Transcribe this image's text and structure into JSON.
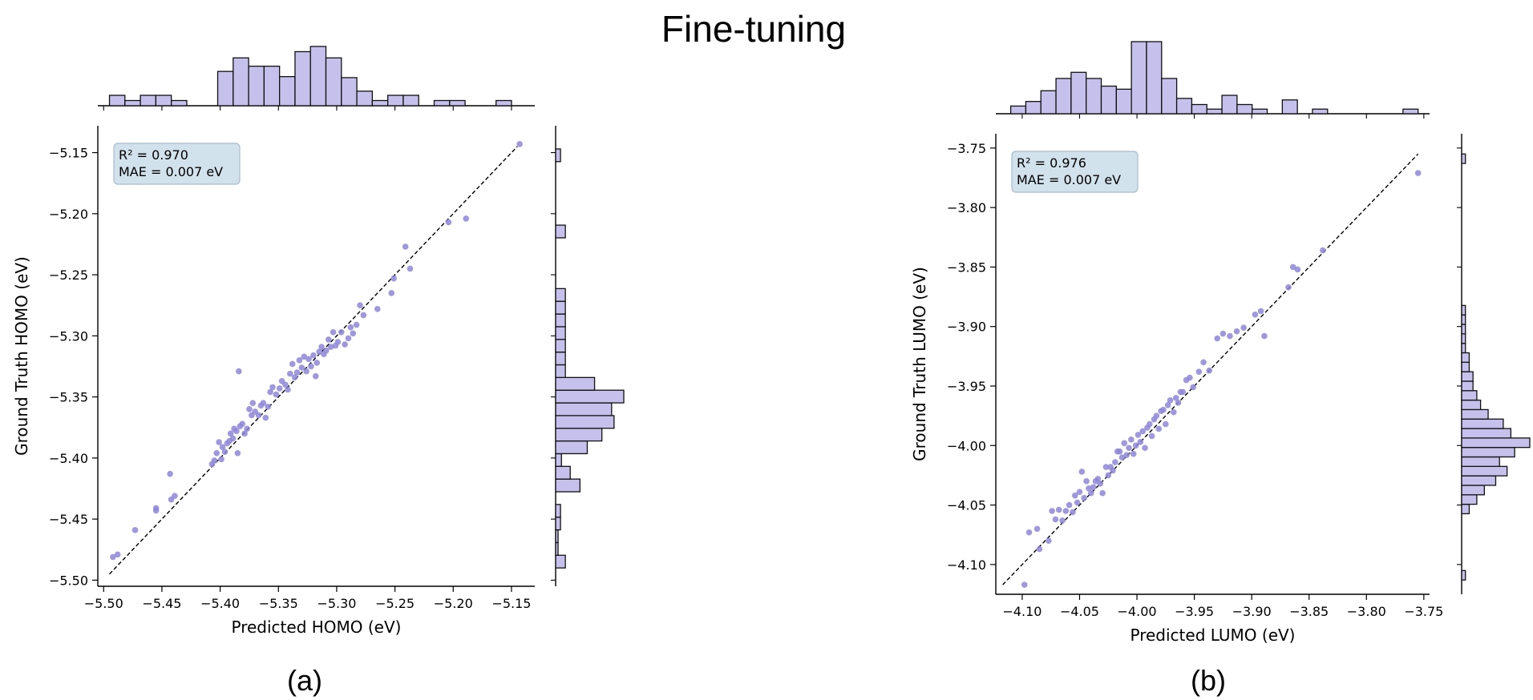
{
  "figure": {
    "title": "Fine-tuning",
    "panel_labels": [
      "(a)",
      "(b)"
    ]
  },
  "colors": {
    "point": "#8e86d6",
    "bar_fill": "#c5c0ec",
    "bar_edge": "#111111",
    "stats_box_fill": "#d2e2ec",
    "stats_box_edge": "#a9bccb",
    "axis": "#000000"
  },
  "chart_data": [
    {
      "type": "scatter",
      "panel": "(a)",
      "xlabel": "Predicted HOMO (eV)",
      "ylabel": "Ground Truth HOMO (eV)",
      "xlim": [
        -5.505,
        -5.13
      ],
      "ylim": [
        -5.505,
        -5.128
      ],
      "xticks": [
        -5.5,
        -5.45,
        -5.4,
        -5.35,
        -5.3,
        -5.25,
        -5.2,
        -5.15
      ],
      "yticks": [
        -5.5,
        -5.45,
        -5.4,
        -5.35,
        -5.3,
        -5.25,
        -5.2,
        -5.15
      ],
      "xtick_labels": [
        "−5.50",
        "−5.45",
        "−5.40",
        "−5.35",
        "−5.30",
        "−5.25",
        "−5.20",
        "−5.15"
      ],
      "ytick_labels": [
        "−5.50",
        "−5.45",
        "−5.40",
        "−5.35",
        "−5.30",
        "−5.25",
        "−5.20",
        "−5.15"
      ],
      "stats": {
        "r2_label": "R² = 0.970",
        "mae_label": "MAE = 0.007 eV"
      },
      "diagonal": [
        -5.495,
        -5.145
      ],
      "points": [
        [
          -5.492,
          -5.481
        ],
        [
          -5.488,
          -5.479
        ],
        [
          -5.473,
          -5.459
        ],
        [
          -5.455,
          -5.441
        ],
        [
          -5.455,
          -5.443
        ],
        [
          -5.443,
          -5.413
        ],
        [
          -5.442,
          -5.434
        ],
        [
          -5.439,
          -5.431
        ],
        [
          -5.407,
          -5.405
        ],
        [
          -5.405,
          -5.402
        ],
        [
          -5.403,
          -5.396
        ],
        [
          -5.401,
          -5.387
        ],
        [
          -5.399,
          -5.401
        ],
        [
          -5.398,
          -5.391
        ],
        [
          -5.396,
          -5.395
        ],
        [
          -5.394,
          -5.388
        ],
        [
          -5.392,
          -5.386
        ],
        [
          -5.391,
          -5.38
        ],
        [
          -5.389,
          -5.384
        ],
        [
          -5.388,
          -5.376
        ],
        [
          -5.386,
          -5.378
        ],
        [
          -5.385,
          -5.396
        ],
        [
          -5.384,
          -5.329
        ],
        [
          -5.383,
          -5.374
        ],
        [
          -5.381,
          -5.372
        ],
        [
          -5.379,
          -5.38
        ],
        [
          -5.377,
          -5.376
        ],
        [
          -5.375,
          -5.36
        ],
        [
          -5.373,
          -5.365
        ],
        [
          -5.372,
          -5.355
        ],
        [
          -5.37,
          -5.362
        ],
        [
          -5.367,
          -5.365
        ],
        [
          -5.365,
          -5.357
        ],
        [
          -5.363,
          -5.355
        ],
        [
          -5.361,
          -5.367
        ],
        [
          -5.359,
          -5.358
        ],
        [
          -5.357,
          -5.346
        ],
        [
          -5.355,
          -5.342
        ],
        [
          -5.352,
          -5.348
        ],
        [
          -5.349,
          -5.343
        ],
        [
          -5.347,
          -5.337
        ],
        [
          -5.344,
          -5.34
        ],
        [
          -5.342,
          -5.344
        ],
        [
          -5.34,
          -5.331
        ],
        [
          -5.338,
          -5.323
        ],
        [
          -5.336,
          -5.334
        ],
        [
          -5.334,
          -5.33
        ],
        [
          -5.332,
          -5.32
        ],
        [
          -5.33,
          -5.326
        ],
        [
          -5.328,
          -5.317
        ],
        [
          -5.326,
          -5.329
        ],
        [
          -5.324,
          -5.319
        ],
        [
          -5.322,
          -5.325
        ],
        [
          -5.32,
          -5.316
        ],
        [
          -5.318,
          -5.333
        ],
        [
          -5.317,
          -5.322
        ],
        [
          -5.315,
          -5.313
        ],
        [
          -5.313,
          -5.309
        ],
        [
          -5.311,
          -5.315
        ],
        [
          -5.309,
          -5.312
        ],
        [
          -5.307,
          -5.303
        ],
        [
          -5.305,
          -5.309
        ],
        [
          -5.303,
          -5.297
        ],
        [
          -5.301,
          -5.308
        ],
        [
          -5.299,
          -5.305
        ],
        [
          -5.296,
          -5.297
        ],
        [
          -5.293,
          -5.307
        ],
        [
          -5.29,
          -5.302
        ],
        [
          -5.288,
          -5.293
        ],
        [
          -5.286,
          -5.298
        ],
        [
          -5.283,
          -5.291
        ],
        [
          -5.28,
          -5.275
        ],
        [
          -5.277,
          -5.283
        ],
        [
          -5.265,
          -5.278
        ],
        [
          -5.253,
          -5.265
        ],
        [
          -5.251,
          -5.253
        ],
        [
          -5.241,
          -5.227
        ],
        [
          -5.237,
          -5.245
        ],
        [
          -5.204,
          -5.207
        ],
        [
          -5.189,
          -5.204
        ],
        [
          -5.143,
          -5.143
        ]
      ],
      "top_hist": {
        "bin_edges": [
          -5.495,
          -5.15
        ],
        "counts": [
          1,
          0.5,
          1,
          1,
          0.5,
          0,
          0,
          3.3,
          4.6,
          3.8,
          3.8,
          2.8,
          5.2,
          5.7,
          4.6,
          2.7,
          1.4,
          0.5,
          1,
          1,
          0,
          0.5,
          0.5,
          0,
          0,
          0.5
        ]
      },
      "right_hist": {
        "bin_edges": [
          -5.49,
          -5.147
        ],
        "counts": [
          2,
          0.5,
          0.5,
          1,
          1,
          0,
          5,
          3,
          1.2,
          6.5,
          9.5,
          12,
          11.5,
          14,
          8,
          2,
          2,
          2,
          2,
          2,
          2,
          2,
          0,
          0,
          0,
          0,
          2,
          0,
          0,
          0,
          0,
          0,
          1
        ]
      }
    },
    {
      "type": "scatter",
      "panel": "(b)",
      "xlabel": "Predicted LUMO (eV)",
      "ylabel": "Ground Truth LUMO (eV)",
      "xlim": [
        -4.123,
        -3.745
      ],
      "ylim": [
        -4.125,
        -3.738
      ],
      "xticks": [
        -4.1,
        -4.05,
        -4.0,
        -3.95,
        -3.9,
        -3.85,
        -3.8,
        -3.75
      ],
      "yticks": [
        -4.1,
        -4.05,
        -4.0,
        -3.95,
        -3.9,
        -3.85,
        -3.8,
        -3.75
      ],
      "xtick_labels": [
        "−4.10",
        "−4.05",
        "−4.00",
        "−3.95",
        "−3.90",
        "−3.85",
        "−3.80",
        "−3.75"
      ],
      "ytick_labels": [
        "−4.10",
        "−4.05",
        "−4.00",
        "−3.95",
        "−3.90",
        "−3.85",
        "−3.80",
        "−3.75"
      ],
      "stats": {
        "r2_label": "R² = 0.976",
        "mae_label": "MAE = 0.007 eV"
      },
      "diagonal": [
        -4.117,
        -3.755
      ],
      "points": [
        [
          -4.098,
          -4.117
        ],
        [
          -4.094,
          -4.073
        ],
        [
          -4.087,
          -4.07
        ],
        [
          -4.085,
          -4.087
        ],
        [
          -4.077,
          -4.08
        ],
        [
          -4.074,
          -4.055
        ],
        [
          -4.071,
          -4.062
        ],
        [
          -4.068,
          -4.054
        ],
        [
          -4.065,
          -4.063
        ],
        [
          -4.062,
          -4.055
        ],
        [
          -4.059,
          -4.05
        ],
        [
          -4.056,
          -4.056
        ],
        [
          -4.054,
          -4.042
        ],
        [
          -4.052,
          -4.048
        ],
        [
          -4.05,
          -4.039
        ],
        [
          -4.048,
          -4.022
        ],
        [
          -4.046,
          -4.044
        ],
        [
          -4.044,
          -4.03
        ],
        [
          -4.042,
          -4.036
        ],
        [
          -4.04,
          -4.04
        ],
        [
          -4.038,
          -4.035
        ],
        [
          -4.036,
          -4.03
        ],
        [
          -4.034,
          -4.028
        ],
        [
          -4.032,
          -4.032
        ],
        [
          -4.03,
          -4.04
        ],
        [
          -4.027,
          -4.018
        ],
        [
          -4.025,
          -4.025
        ],
        [
          -4.023,
          -4.018
        ],
        [
          -4.021,
          -4.021
        ],
        [
          -4.019,
          -4.014
        ],
        [
          -4.017,
          -4.005
        ],
        [
          -4.015,
          -4.005
        ],
        [
          -4.013,
          -4.01
        ],
        [
          -4.011,
          -3.998
        ],
        [
          -4.009,
          -4.008
        ],
        [
          -4.007,
          -4.002
        ],
        [
          -4.005,
          -3.995
        ],
        [
          -4.003,
          -4.007
        ],
        [
          -4.001,
          -4.0
        ],
        [
          -3.999,
          -3.991
        ],
        [
          -3.997,
          -3.997
        ],
        [
          -3.995,
          -3.988
        ],
        [
          -3.993,
          -4.002
        ],
        [
          -3.991,
          -3.985
        ],
        [
          -3.989,
          -3.982
        ],
        [
          -3.987,
          -3.992
        ],
        [
          -3.985,
          -3.978
        ],
        [
          -3.983,
          -3.975
        ],
        [
          -3.981,
          -3.986
        ],
        [
          -3.979,
          -3.971
        ],
        [
          -3.977,
          -3.97
        ],
        [
          -3.975,
          -3.982
        ],
        [
          -3.973,
          -3.966
        ],
        [
          -3.971,
          -3.962
        ],
        [
          -3.968,
          -3.972
        ],
        [
          -3.966,
          -3.96
        ],
        [
          -3.964,
          -3.964
        ],
        [
          -3.962,
          -3.955
        ],
        [
          -3.96,
          -3.955
        ],
        [
          -3.957,
          -3.945
        ],
        [
          -3.954,
          -3.943
        ],
        [
          -3.951,
          -3.951
        ],
        [
          -3.946,
          -3.938
        ],
        [
          -3.942,
          -3.93
        ],
        [
          -3.937,
          -3.937
        ],
        [
          -3.93,
          -3.91
        ],
        [
          -3.925,
          -3.906
        ],
        [
          -3.919,
          -3.908
        ],
        [
          -3.913,
          -3.904
        ],
        [
          -3.907,
          -3.901
        ],
        [
          -3.897,
          -3.89
        ],
        [
          -3.892,
          -3.887
        ],
        [
          -3.889,
          -3.908
        ],
        [
          -3.868,
          -3.867
        ],
        [
          -3.864,
          -3.85
        ],
        [
          -3.86,
          -3.852
        ],
        [
          -3.838,
          -3.836
        ],
        [
          -3.755,
          -3.771
        ]
      ],
      "top_hist": {
        "bin_edges": [
          -4.11,
          -3.755
        ],
        "counts": [
          0.5,
          0.8,
          1.5,
          2.3,
          2.7,
          2.3,
          1.8,
          1.6,
          4.7,
          4.7,
          2.3,
          1,
          0.6,
          0.3,
          1.2,
          0.6,
          0.3,
          0,
          0.9,
          0,
          0.3,
          0,
          0,
          0,
          0,
          0,
          0.3
        ]
      },
      "right_hist": {
        "bin_edges": [
          -4.113,
          -3.755
        ],
        "counts": [
          1,
          0,
          0,
          0,
          0,
          0,
          0,
          2,
          4,
          6,
          9,
          12,
          10,
          14,
          18,
          13,
          11,
          7,
          5,
          4,
          3,
          3,
          2,
          2,
          1,
          1,
          1,
          1,
          1,
          0,
          0,
          0,
          0,
          0,
          0,
          0,
          0,
          0,
          0,
          0,
          0,
          0,
          0,
          0,
          1
        ]
      }
    }
  ]
}
